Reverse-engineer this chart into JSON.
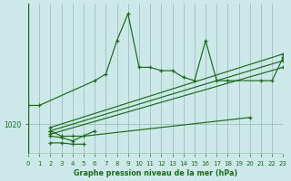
{
  "background_color": "#cce8e8",
  "plot_bg_color": "#cce8e8",
  "line_color": "#1a6b1a",
  "grid_color": "#9dbfbf",
  "title": "Graphe pression niveau de la mer (hPa)",
  "xlim": [
    0,
    23
  ],
  "ylim": [
    1015.5,
    1038
  ],
  "yticks": [
    1020
  ],
  "xticks": [
    0,
    1,
    2,
    3,
    4,
    5,
    6,
    7,
    8,
    9,
    10,
    11,
    12,
    13,
    14,
    15,
    16,
    17,
    18,
    19,
    20,
    21,
    22,
    23
  ],
  "series": [
    {
      "x": [
        0,
        1,
        6,
        7,
        8,
        9,
        10,
        11,
        12,
        13,
        14,
        15,
        16,
        17,
        18,
        21,
        22,
        23
      ],
      "y": [
        1022.8,
        1022.8,
        1026.5,
        1027.5,
        1032.5,
        1036.5,
        1028.5,
        1028.5,
        1028.0,
        1028.0,
        1027.0,
        1026.5,
        1032.5,
        1026.5,
        1026.5,
        1026.5,
        1026.5,
        1030.0
      ]
    },
    {
      "x": [
        2,
        3,
        4,
        5,
        20
      ],
      "y": [
        1019.0,
        1018.2,
        1018.2,
        1018.2,
        1021.0
      ]
    },
    {
      "x": [
        2,
        3,
        4,
        6
      ],
      "y": [
        1018.2,
        1018.0,
        1017.5,
        1019.0
      ]
    },
    {
      "x": [
        2,
        3,
        4,
        5
      ],
      "y": [
        1017.2,
        1017.2,
        1017.0,
        1017.0
      ]
    },
    {
      "x": [
        2,
        23
      ],
      "y": [
        1018.5,
        1028.5
      ]
    },
    {
      "x": [
        2,
        23
      ],
      "y": [
        1019.0,
        1029.5
      ]
    },
    {
      "x": [
        2,
        23
      ],
      "y": [
        1019.5,
        1030.5
      ]
    }
  ]
}
